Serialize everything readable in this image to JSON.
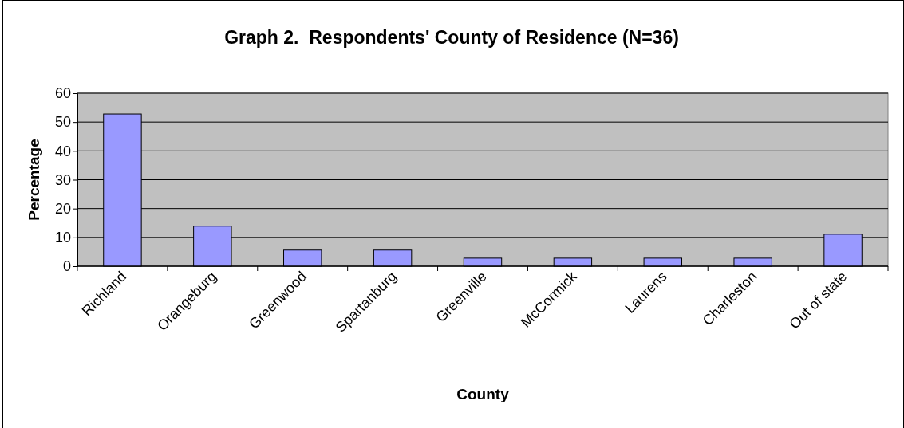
{
  "chart_data": {
    "type": "bar",
    "title": "Graph 2.  Respondents' County of Residence (N=36)",
    "xlabel": "County",
    "ylabel": "Percentage",
    "categories": [
      "Richland",
      "Orangeburg",
      "Greenwood",
      "Spartanburg",
      "Greenville",
      "McCormick",
      "Laurens",
      "Charleston",
      "Out of state"
    ],
    "values": [
      52.8,
      13.9,
      5.6,
      5.6,
      2.8,
      2.8,
      2.8,
      2.8,
      11.1
    ],
    "color": "#9999ff",
    "ylim": [
      0,
      60
    ],
    "yticks": [
      0,
      10,
      20,
      30,
      40,
      50,
      60
    ],
    "grid": "y"
  }
}
